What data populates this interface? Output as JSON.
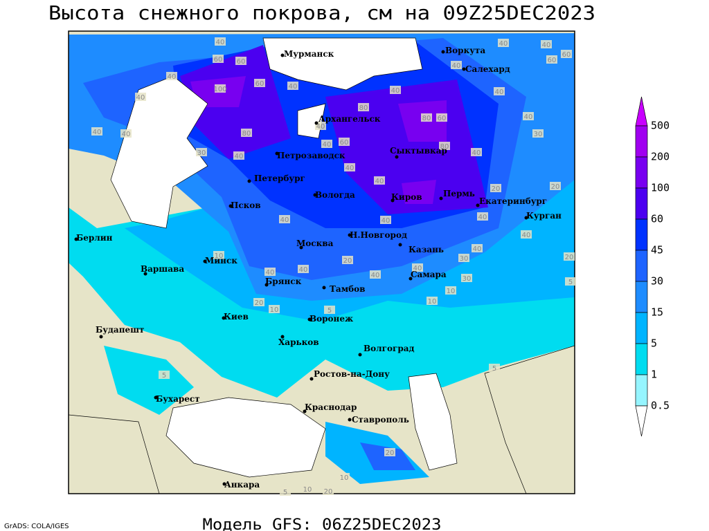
{
  "header": {
    "title": "Высота снежного покрова, см на 09Z25DEC2023"
  },
  "footer": {
    "credit": "GrADS: COLA/IGES",
    "model": "Модель GFS: 06Z25DEC2023"
  },
  "legend": {
    "levels": [
      500,
      200,
      100,
      60,
      45,
      30,
      15,
      5,
      1,
      0.5
    ],
    "colors": [
      "#c800ff",
      "#a000f0",
      "#7800f0",
      "#4b00f0",
      "#0032ff",
      "#1e64ff",
      "#1e8cff",
      "#00b4ff",
      "#00dcf0",
      "#96f5ff",
      "#ffffff"
    ]
  },
  "cities": [
    "Мурманск",
    "Воркута",
    "Салехард",
    "Архангельск",
    "Петрозаводск",
    "Сыктывкар",
    "Петербург",
    "Вологда",
    "Киров",
    "Пермь",
    "Екатеринбург",
    "Курган",
    "Псков",
    "Берлин",
    "Н.Новгород",
    "Москва",
    "Казань",
    "Минск",
    "Варшава",
    "Самара",
    "Брянск",
    "Тамбов",
    "Киев",
    "Воронеж",
    "Будапешт",
    "Харьков",
    "Волгоград",
    "Ростов-на-Дону",
    "Бухарест",
    "Краснодар",
    "Ставрополь",
    "Анкара"
  ],
  "contour_labels": [
    40,
    60,
    60,
    40,
    100,
    60,
    40,
    40,
    40,
    40,
    80,
    40,
    40,
    60,
    80,
    40,
    80,
    60,
    40,
    40,
    60,
    60,
    40,
    40,
    40,
    30,
    40,
    80,
    40,
    30,
    40,
    40,
    20,
    20,
    40,
    40,
    40,
    40,
    40,
    10,
    30,
    20,
    40,
    40,
    20,
    40,
    40,
    30,
    5,
    20,
    10,
    10,
    10,
    5,
    5,
    5,
    20,
    10,
    10,
    20,
    5
  ]
}
